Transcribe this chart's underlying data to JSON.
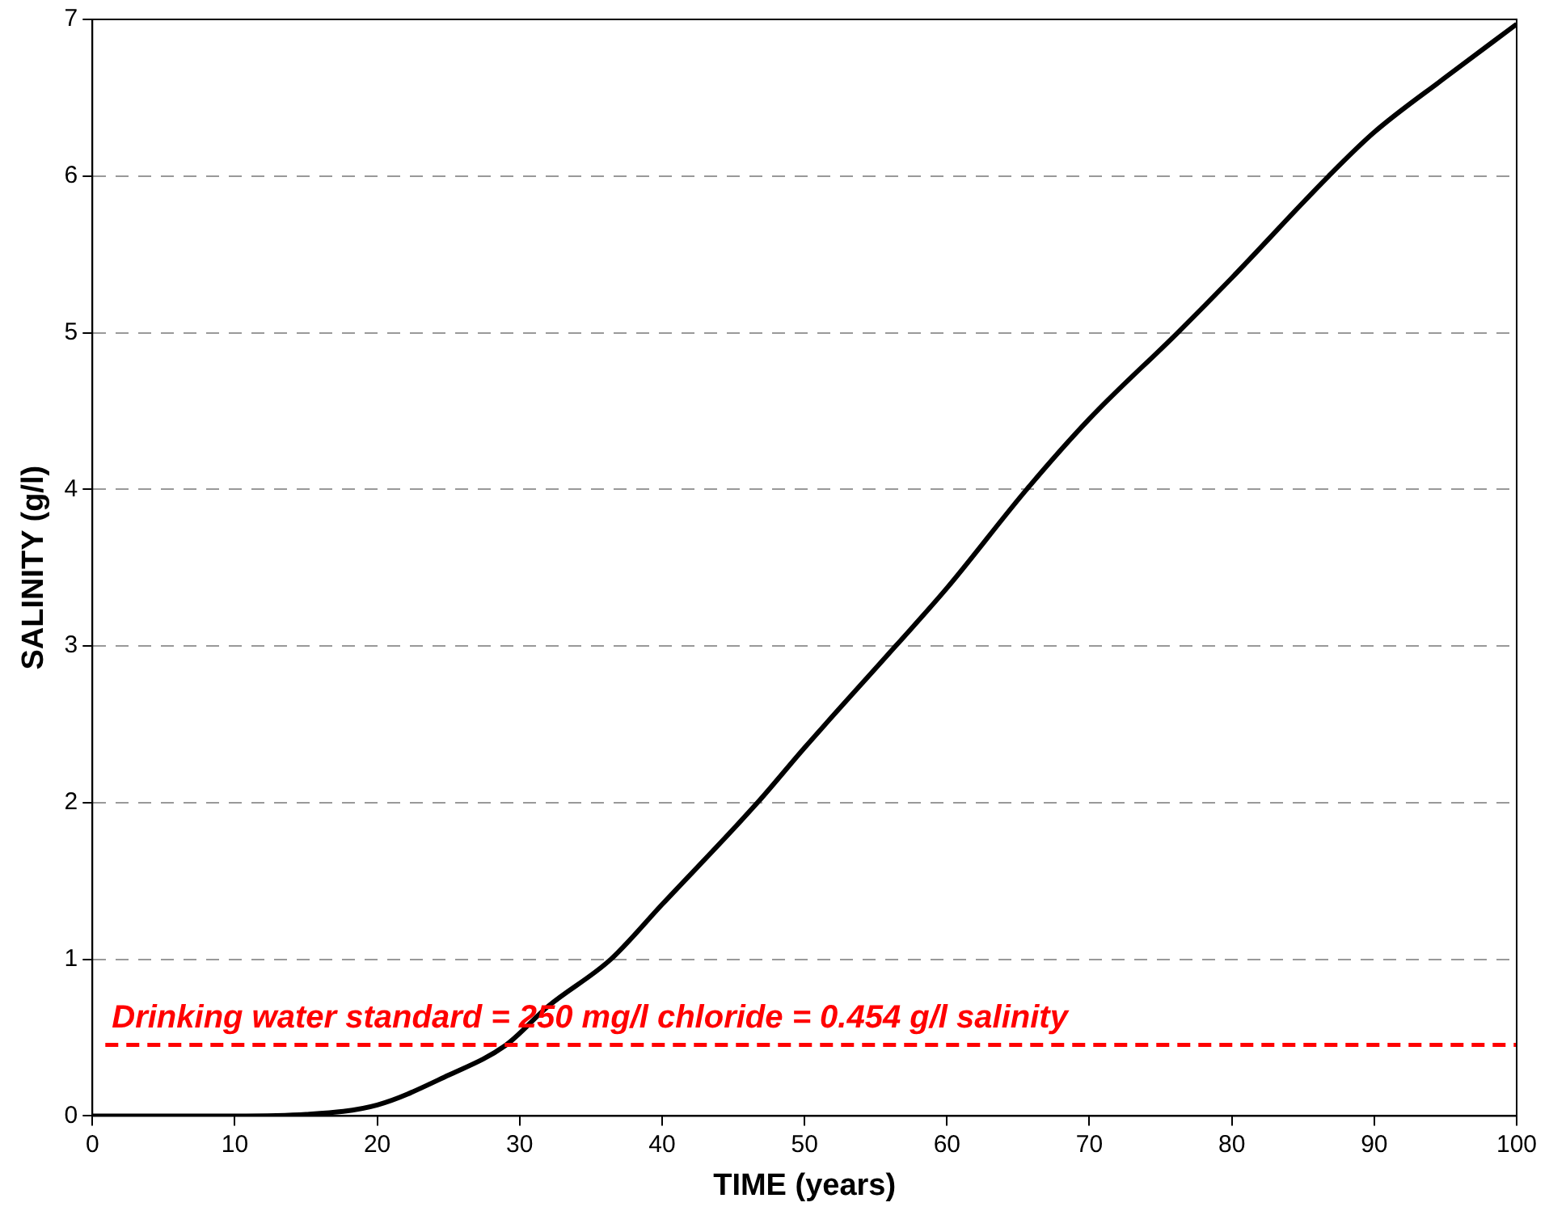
{
  "chart_data": {
    "type": "line",
    "xlabel": "TIME (years)",
    "ylabel": "SALINITY (g/l)",
    "xlim": [
      0,
      100
    ],
    "xticks": [
      0,
      10,
      20,
      30,
      40,
      50,
      60,
      70,
      80,
      90,
      100
    ],
    "ylim": [
      0,
      7
    ],
    "yticks": [
      0,
      1,
      2,
      3,
      4,
      5,
      6,
      7
    ],
    "grid": "y",
    "line_style": "solid",
    "marker": "none",
    "series": [
      {
        "color": "#000000",
        "x": [
          0,
          5,
          10,
          15,
          20,
          25,
          29,
          32,
          36.4,
          40,
          46.7,
          50,
          56.4,
          60,
          65.6,
          70,
          76.2,
          80,
          86.8,
          90,
          95,
          100
        ],
        "values": [
          0,
          0,
          0,
          0.01,
          0.07,
          0.26,
          0.45,
          0.7,
          1,
          1.35,
          2,
          2.35,
          3,
          3.37,
          4,
          4.45,
          5,
          5.35,
          6,
          6.28,
          6.63,
          6.97
        ]
      }
    ],
    "ref_lines": [
      {
        "axis": "y",
        "value": 0.454,
        "label": "Drinking water standard = 250 mg/l chloride = 0.454 g/l salinity",
        "color": "#ff0000",
        "line_style": "dashed"
      }
    ]
  }
}
